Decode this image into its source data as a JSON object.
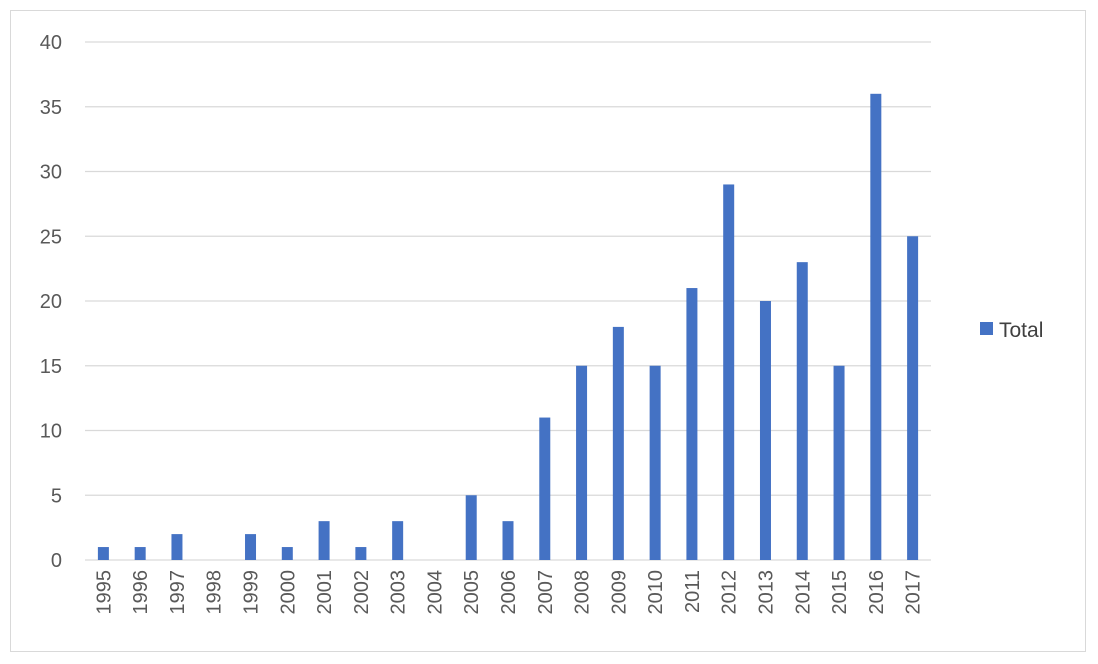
{
  "chart_data": {
    "type": "bar",
    "categories": [
      "1995",
      "1996",
      "1997",
      "1998",
      "1999",
      "2000",
      "2001",
      "2002",
      "2003",
      "2004",
      "2005",
      "2006",
      "2007",
      "2008",
      "2009",
      "2010",
      "2011",
      "2012",
      "2013",
      "2014",
      "2015",
      "2016",
      "2017"
    ],
    "series": [
      {
        "name": "Total",
        "values": [
          1,
          1,
          2,
          0,
          2,
          1,
          3,
          1,
          3,
          0,
          5,
          3,
          11,
          15,
          18,
          15,
          21,
          29,
          20,
          23,
          15,
          36,
          25
        ],
        "color": "#4472c4"
      }
    ],
    "ylim": [
      0,
      40
    ],
    "yticks": [
      0,
      5,
      10,
      15,
      20,
      25,
      30,
      35,
      40
    ],
    "grid": true,
    "legend": "right",
    "gridline_color": "#d9d9d9"
  }
}
